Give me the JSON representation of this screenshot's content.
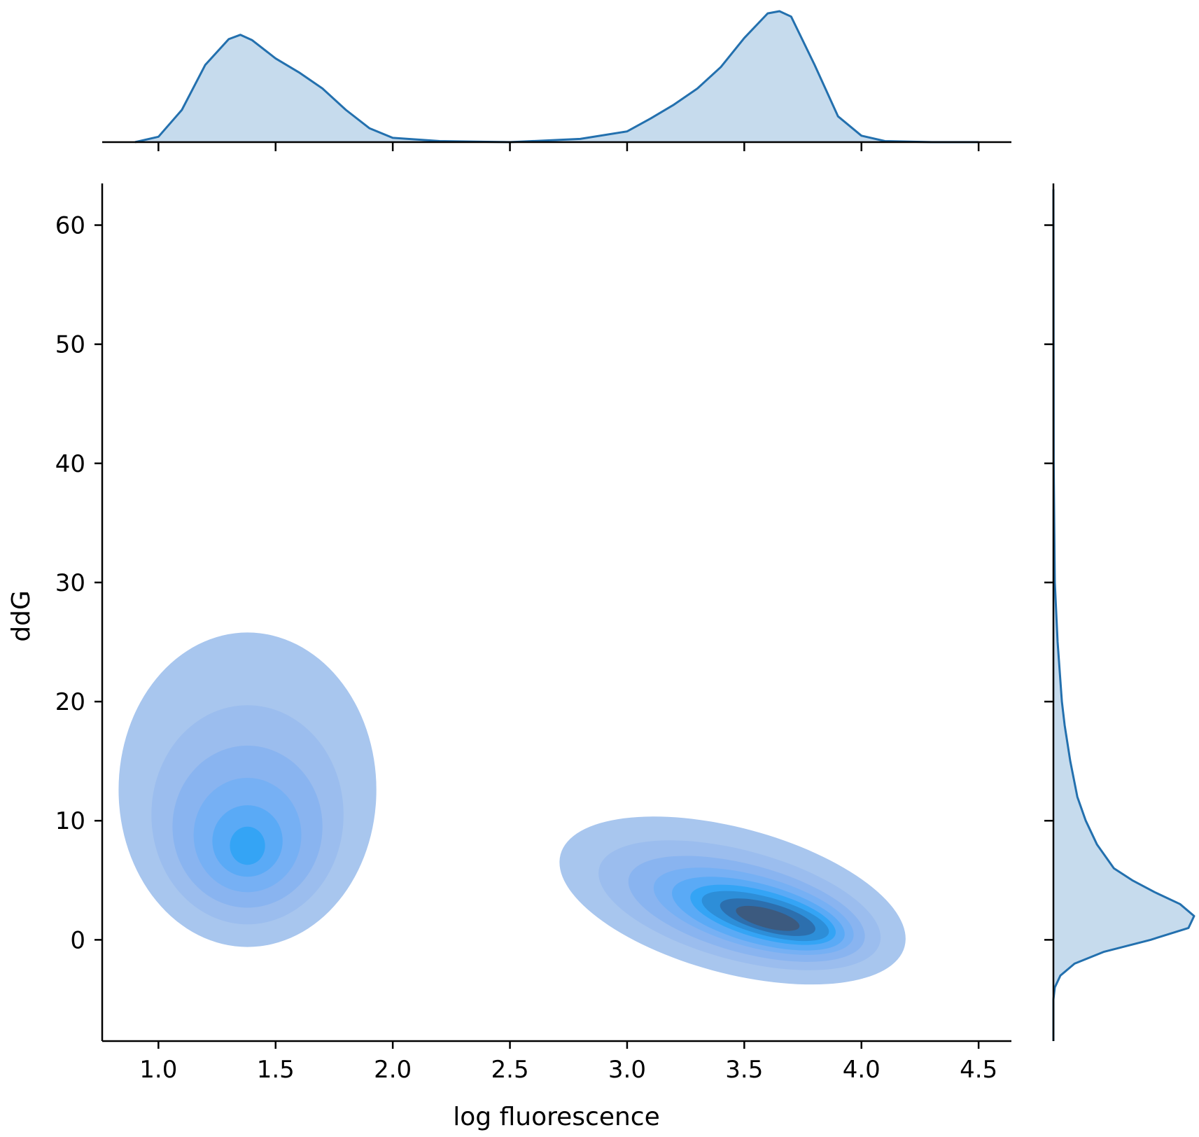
{
  "chart_data": {
    "type": "jointplot-kde",
    "xlabel": "log fluorescence",
    "ylabel": "ddG",
    "xlim": [
      0.76,
      4.64
    ],
    "ylim": [
      -8.5,
      63.5
    ],
    "x_ticks": [
      1.0,
      1.5,
      2.0,
      2.5,
      3.0,
      3.5,
      4.0,
      4.5
    ],
    "x_tick_labels": [
      "1.0",
      "1.5",
      "2.0",
      "2.5",
      "3.0",
      "3.5",
      "4.0",
      "4.5"
    ],
    "y_ticks": [
      0,
      10,
      20,
      30,
      40,
      50,
      60
    ],
    "y_tick_labels": [
      "0",
      "10",
      "20",
      "30",
      "40",
      "50",
      "60"
    ],
    "grid": false,
    "colors": {
      "level_1": "#a8c6ee",
      "level_2": "#9bbdee",
      "level_3": "#89b4f0",
      "level_4": "#76b0f4",
      "level_5": "#5aaaf6",
      "level_6": "#34a4f5",
      "level_7": "#2d8ed8",
      "level_8": "#2c6fae",
      "level_9": "#3c5a7f",
      "marginal_fill": "#c6dbed",
      "marginal_line": "#2370ae"
    },
    "kde_clusters": [
      {
        "center": [
          1.38,
          7.8
        ],
        "levels": [
          {
            "level": 1,
            "cx": 1.38,
            "cy": 12.6,
            "rx": 0.55,
            "ry": 13.2
          },
          {
            "level": 2,
            "cx": 1.38,
            "cy": 10.5,
            "rx": 0.41,
            "ry": 9.2
          },
          {
            "level": 3,
            "cx": 1.38,
            "cy": 9.5,
            "rx": 0.32,
            "ry": 6.8
          },
          {
            "level": 4,
            "cx": 1.38,
            "cy": 8.8,
            "rx": 0.23,
            "ry": 4.8
          },
          {
            "level": 5,
            "cx": 1.38,
            "cy": 8.3,
            "rx": 0.15,
            "ry": 3.0
          },
          {
            "level": 6,
            "cx": 1.38,
            "cy": 7.9,
            "rx": 0.075,
            "ry": 1.6
          }
        ]
      },
      {
        "center": [
          3.6,
          1.8
        ],
        "levels": [
          {
            "level": 1,
            "cx": 3.45,
            "cy": 3.3,
            "rx": 0.76,
            "ry": 6.1
          },
          {
            "level": 2,
            "cx": 3.48,
            "cy": 2.9,
            "rx": 0.62,
            "ry": 4.6
          },
          {
            "level": 3,
            "cx": 3.51,
            "cy": 2.6,
            "rx": 0.52,
            "ry": 3.7
          },
          {
            "level": 4,
            "cx": 3.54,
            "cy": 2.4,
            "rx": 0.44,
            "ry": 3.0
          },
          {
            "level": 5,
            "cx": 3.56,
            "cy": 2.2,
            "rx": 0.38,
            "ry": 2.5
          },
          {
            "level": 6,
            "cx": 3.58,
            "cy": 2.1,
            "rx": 0.32,
            "ry": 2.0
          },
          {
            "level": 7,
            "cx": 3.59,
            "cy": 2.0,
            "rx": 0.28,
            "ry": 1.6
          },
          {
            "level": 8,
            "cx": 3.6,
            "cy": 1.9,
            "rx": 0.21,
            "ry": 1.2
          },
          {
            "level": 9,
            "cx": 3.6,
            "cy": 1.8,
            "rx": 0.14,
            "ry": 0.8
          }
        ]
      }
    ],
    "marginal_x_density": {
      "x": [
        0.9,
        1.0,
        1.1,
        1.2,
        1.3,
        1.35,
        1.4,
        1.5,
        1.6,
        1.7,
        1.8,
        1.9,
        2.0,
        2.2,
        2.5,
        2.8,
        3.0,
        3.1,
        3.2,
        3.3,
        3.4,
        3.5,
        3.6,
        3.65,
        3.7,
        3.8,
        3.9,
        4.0,
        4.1,
        4.3,
        4.5
      ],
      "density": [
        0.0,
        0.05,
        0.3,
        0.72,
        0.96,
        1.0,
        0.95,
        0.78,
        0.65,
        0.5,
        0.3,
        0.13,
        0.04,
        0.01,
        0.0,
        0.03,
        0.1,
        0.22,
        0.35,
        0.5,
        0.7,
        0.97,
        1.2,
        1.22,
        1.17,
        0.72,
        0.24,
        0.06,
        0.01,
        0.0,
        0.0
      ]
    },
    "marginal_y_density": {
      "y": [
        63.0,
        40.0,
        30.0,
        25.0,
        20.0,
        18.0,
        15.0,
        12.0,
        10.0,
        8.0,
        6.0,
        5.0,
        4.0,
        3.0,
        2.0,
        1.0,
        0.0,
        -1.0,
        -2.0,
        -3.0,
        -4.0,
        -5.0,
        -8.5
      ],
      "density": [
        0.0,
        0.002,
        0.01,
        0.03,
        0.06,
        0.08,
        0.12,
        0.17,
        0.23,
        0.31,
        0.43,
        0.56,
        0.72,
        0.9,
        1.0,
        0.96,
        0.69,
        0.36,
        0.15,
        0.05,
        0.01,
        0.0,
        0.0
      ]
    }
  }
}
